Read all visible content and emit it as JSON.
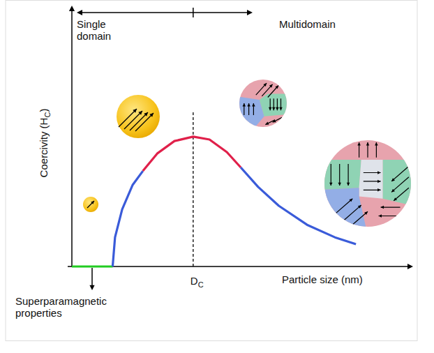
{
  "chart_data": {
    "type": "line",
    "tick_labels": false,
    "xlabel": "Particle size (nm)",
    "ylabel": {
      "text": "Coercivity (H",
      "sub": "C",
      "after": ")"
    },
    "xlim": [
      0,
      100
    ],
    "ylim": [
      0,
      100
    ],
    "series": [
      {
        "color": "#22cc22",
        "x": [
          0,
          12
        ],
        "values": [
          0,
          0
        ]
      },
      {
        "color": "#3a5bd9",
        "x": [
          12,
          12.7,
          14.8,
          17.9,
          20.9
        ],
        "values": [
          0,
          11.4,
          22.3,
          31.9,
          37.3
        ]
      },
      {
        "color": "#e0204a",
        "x": [
          20.9,
          25.1,
          30.2,
          35.7,
          40.5,
          45.6,
          49.7
        ],
        "values": [
          37.3,
          44.1,
          49,
          50.7,
          49.6,
          44.7,
          38.7
        ]
      },
      {
        "color": "#3a5bd9",
        "x": [
          49.7,
          54.8,
          60.9,
          69.2,
          77.4,
          83.6
        ],
        "values": [
          38.7,
          31.1,
          23.7,
          16.3,
          11.4,
          8.7
        ]
      }
    ],
    "critical_size": {
      "value": 35.7,
      "label": "D",
      "label_sub": "C"
    },
    "annotations": {
      "single_domain": [
        "Single",
        "domain"
      ],
      "multidomain": "Multidomain",
      "superparamagnetic": [
        "Superparamagnetic",
        "properties"
      ]
    }
  }
}
